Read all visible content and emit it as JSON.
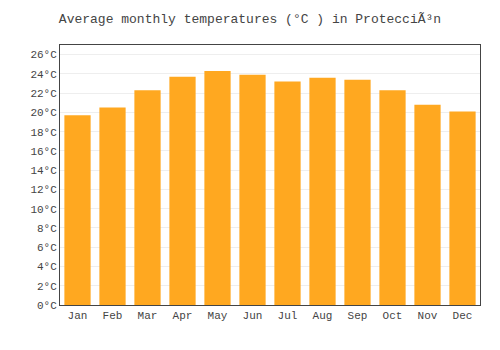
{
  "chart_data": {
    "type": "bar",
    "title": "Average monthly temperatures (°C ) in ProtecciÃ³n",
    "categories": [
      "Jan",
      "Feb",
      "Mar",
      "Apr",
      "May",
      "Jun",
      "Jul",
      "Aug",
      "Sep",
      "Oct",
      "Nov",
      "Dec"
    ],
    "values": [
      19.7,
      20.5,
      22.3,
      23.7,
      24.3,
      23.9,
      23.2,
      23.6,
      23.4,
      22.3,
      20.8,
      20.1
    ],
    "color": "#FFA820",
    "ylim": [
      0,
      27
    ],
    "yticks": [
      {
        "value": 0,
        "label": "0°C"
      },
      {
        "value": 2,
        "label": "2°C"
      },
      {
        "value": 4,
        "label": "4°C"
      },
      {
        "value": 6,
        "label": "6°C"
      },
      {
        "value": 8,
        "label": "8°C"
      },
      {
        "value": 10,
        "label": "10°C"
      },
      {
        "value": 12,
        "label": "12°C"
      },
      {
        "value": 14,
        "label": "14°C"
      },
      {
        "value": 16,
        "label": "16°C"
      },
      {
        "value": 18,
        "label": "18°C"
      },
      {
        "value": 20,
        "label": "20°C"
      },
      {
        "value": 22,
        "label": "22°C"
      },
      {
        "value": 24,
        "label": "24°C"
      },
      {
        "value": 26,
        "label": "26°C"
      }
    ],
    "grid": true
  }
}
